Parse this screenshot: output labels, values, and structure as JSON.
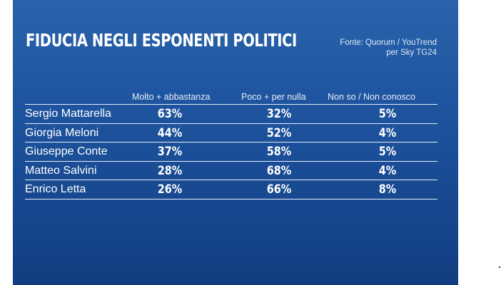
{
  "title": "FIDUCIA NEGLI ESPONENTI POLITICI",
  "source": {
    "line1": "Fonte: Quorum / YouTrend",
    "line2": "per Sky TG24"
  },
  "headers": [
    "Molto + abbastanza",
    "Poco + per nulla",
    "Non so / Non conosco"
  ],
  "rows": [
    {
      "name": "Sergio Mattarella",
      "values": [
        "63%",
        "32%",
        "5%"
      ]
    },
    {
      "name": "Giorgia Meloni",
      "values": [
        "44%",
        "52%",
        "4%"
      ]
    },
    {
      "name": "Giuseppe Conte",
      "values": [
        "37%",
        "58%",
        "5%"
      ]
    },
    {
      "name": "Matteo Salvini",
      "values": [
        "28%",
        "68%",
        "4%"
      ]
    },
    {
      "name": "Enrico Letta",
      "values": [
        "26%",
        "66%",
        "8%"
      ]
    }
  ],
  "colors": {
    "panel": "#1f55a0",
    "text": "#ffffff",
    "rule": "#e8eef8"
  }
}
